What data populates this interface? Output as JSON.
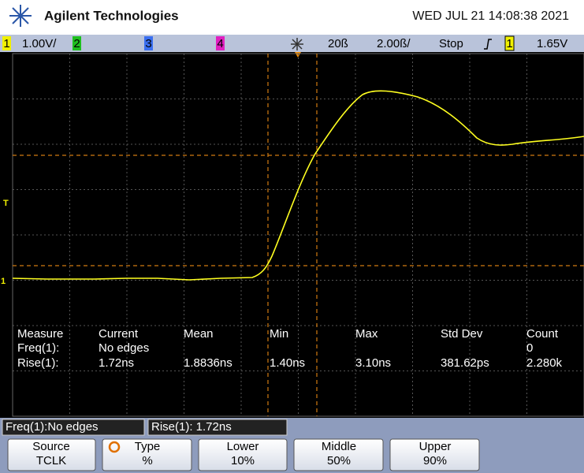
{
  "header": {
    "brand": "Agilent Technologies",
    "datetime": "WED JUL 21 14:08:38 2021"
  },
  "status_bar": {
    "ch1": "1",
    "ch1_scale": "1.00V/",
    "ch2": "2",
    "ch3": "3",
    "ch4": "4",
    "delay": "20ß",
    "timebase": "2.00ß/",
    "run_state": "Stop",
    "trigger_source": "1",
    "trigger_level": "1.65V"
  },
  "markers": {
    "trigger": "T",
    "ground": "1"
  },
  "measurements": {
    "header": [
      "Measure",
      "Current",
      "Mean",
      "Min",
      "Max",
      "Std Dev",
      "Count"
    ],
    "freq": {
      "label": "Freq(1):",
      "current": "No edges",
      "count": "0"
    },
    "rise": [
      "Rise(1):",
      "1.72ns",
      "1.8836ns",
      "1.40ns",
      "3.10ns",
      "381.62ps",
      "2.280k"
    ]
  },
  "status_boxes": [
    "Freq(1):No edges",
    "Rise(1): 1.72ns"
  ],
  "softkeys": [
    {
      "title": "Source",
      "value": "TCLK"
    },
    {
      "title": "Type",
      "value": "%"
    },
    {
      "title": "Lower",
      "value": "10%"
    },
    {
      "title": "Middle",
      "value": "50%"
    },
    {
      "title": "Upper",
      "value": "90%"
    }
  ]
}
